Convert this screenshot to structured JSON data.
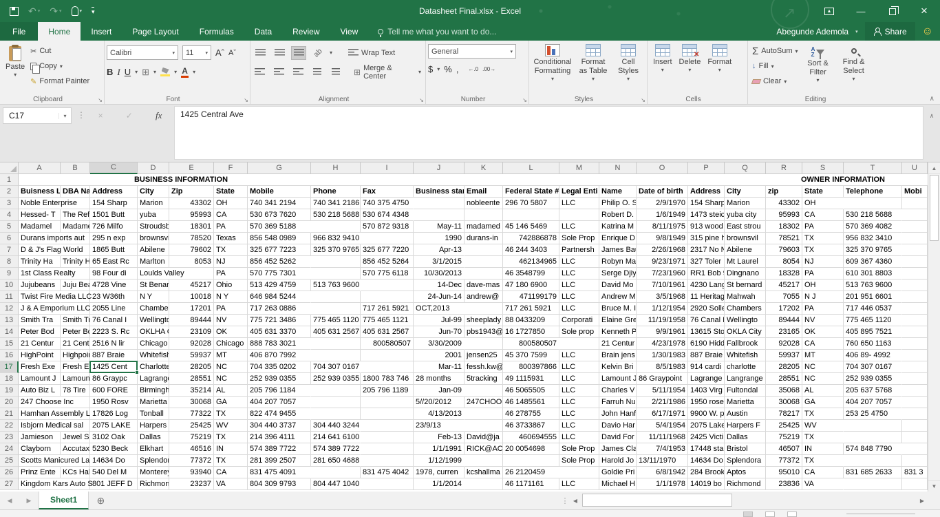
{
  "titlebar": {
    "title": "Datasheet Final.xlsx - Excel"
  },
  "account": {
    "user_name": "Abegunde Ademola",
    "share_label": "Share"
  },
  "tabs": {
    "file": "File",
    "items": [
      "Home",
      "Insert",
      "Page Layout",
      "Formulas",
      "Data",
      "Review",
      "View"
    ],
    "active": "Home",
    "tell_me": "Tell me what you want to do..."
  },
  "ribbon": {
    "clipboard": {
      "label": "Clipboard",
      "paste": "Paste",
      "cut": "Cut",
      "copy": "Copy",
      "format_painter": "Format Painter"
    },
    "font": {
      "label": "Font",
      "font_name": "Calibri",
      "font_size": "11",
      "bold": "B",
      "italic": "I",
      "underline": "U"
    },
    "alignment": {
      "label": "Alignment",
      "wrap_text": "Wrap Text",
      "merge_center": "Merge & Center"
    },
    "number": {
      "label": "Number",
      "format": "General",
      "currency": "$",
      "percent": "%",
      "comma": ",",
      "inc_decimal": "←.0",
      "dec_decimal": ".00→"
    },
    "styles": {
      "label": "Styles",
      "conditional": "Conditional Formatting",
      "format_table": "Format as Table",
      "cell_styles": "Cell Styles"
    },
    "cells": {
      "label": "Cells",
      "insert": "Insert",
      "delete": "Delete",
      "format": "Format"
    },
    "editing": {
      "label": "Editing",
      "autosum": "AutoSum",
      "fill": "Fill",
      "clear": "Clear",
      "sort": "Sort & Filter",
      "find": "Find & Select"
    }
  },
  "formula_bar": {
    "name_box": "C17",
    "fx_label": "fx",
    "value": "1425 Central Ave"
  },
  "grid": {
    "section_headers": {
      "business": "BUSINESS INFORMATION",
      "owner": "OWNER INFORMATION"
    },
    "columns": [
      [
        "A",
        61
      ],
      [
        "B",
        43
      ],
      [
        "C",
        69
      ],
      [
        "D",
        46
      ],
      [
        "E",
        65
      ],
      [
        "F",
        49
      ],
      [
        "G",
        92
      ],
      [
        "H",
        72
      ],
      [
        "I",
        77
      ],
      [
        "J",
        74
      ],
      [
        "K",
        56
      ],
      [
        "L",
        82
      ],
      [
        "M",
        58
      ],
      [
        "N",
        54
      ],
      [
        "O",
        75
      ],
      [
        "P",
        53
      ],
      [
        "Q",
        60
      ],
      [
        "R",
        53
      ],
      [
        "S",
        60
      ],
      [
        "T",
        85
      ],
      [
        "U",
        37
      ]
    ],
    "selected": {
      "cell": "C17",
      "column": "C",
      "row": 17
    },
    "rows": [
      {
        "n": 2,
        "bold": true,
        "cells": [
          "Buisness L",
          "DBA Nam",
          "Address",
          "City",
          "Zip",
          "State",
          "Mobile",
          "Phone",
          "Fax",
          "Business star",
          "Email",
          "Federal State #",
          "Legal Enti",
          "Name",
          "Date of birth",
          "Address",
          "City",
          "zip",
          "State",
          "Telephone",
          "Mobi"
        ]
      },
      {
        "n": 3,
        "cells": [
          "Noble Enterprise",
          "",
          "154 Sharp",
          "Marion",
          "43302",
          "OH",
          "740 341 2194",
          "740 341 2186",
          "740 375 4750",
          "",
          "nobleente",
          "296 70 5807",
          "LLC",
          "Philip O. S",
          "2/9/1970",
          "154 Sharp",
          "Marion",
          "43302",
          "OH",
          "",
          ""
        ]
      },
      {
        "n": 4,
        "cells": [
          "Hessed- T",
          "The Refug",
          "1501 Butt",
          "yuba",
          "95993",
          "CA",
          "530 673 7620",
          "530 218 5688",
          "530 674 4348",
          "",
          "",
          "",
          "",
          "Robert D.",
          "1/6/1949",
          "1473 steic",
          "yuba city",
          "95993",
          "CA",
          "530 218 5688",
          ""
        ]
      },
      {
        "n": 5,
        "cells": [
          "Madamel",
          "Madamel",
          "726 Milfo",
          "Stroudsbu",
          "18301",
          "PA",
          "570 369 5188",
          "",
          "570 872 9318",
          "May-11",
          "madamed",
          "45 146 5469",
          "LLC",
          "Katrina M",
          "8/11/1975",
          "913 wood",
          "East strou",
          "18302",
          "PA",
          "570 369 4082",
          ""
        ]
      },
      {
        "n": 6,
        "cells": [
          "Durans imports aut",
          "",
          "295 n exp",
          "brownsvil",
          "78520",
          "Texas",
          "856 548 0989",
          "966 832 9410",
          "",
          "1990",
          "durans-in",
          "742886878",
          "Sole Prop",
          "Enrique D",
          "9/8/1949",
          "315 pine h",
          "brownsvil",
          "78521",
          "TX",
          "956 832 3410",
          ""
        ]
      },
      {
        "n": 7,
        "cells": [
          "D & J's Flag World",
          "",
          "1865 Butt",
          "Abilene",
          "79602",
          "TX",
          "325 677 7223",
          "325 370 9765",
          "325 677 7220",
          "Apr-13",
          "",
          "46 244 3403",
          "Partnersh",
          "James Bau",
          "2/26/1968",
          "2317 No N",
          "Abilene",
          "79603",
          "TX",
          "325 370 9765",
          ""
        ]
      },
      {
        "n": 8,
        "cells": [
          "Trinity Ha",
          "Trinity Ha",
          "65 East Rc",
          "Marlton",
          "8053",
          "NJ",
          "856 452 5262",
          "",
          "856 452 5264",
          "3/1/2015",
          "",
          "462134965",
          "LLC",
          "Robyn Ma",
          "9/23/1971",
          "327 Toler",
          "Mt Laurel",
          "8054",
          "NJ",
          "609 367 4360",
          ""
        ]
      },
      {
        "n": 9,
        "cells": [
          "1st Class Realty",
          "",
          "98 Four di",
          "Loulds Valley",
          "",
          "PA",
          "570 775 7301",
          "",
          "570 775 6118",
          "10/30/2013",
          "",
          "46  3548799",
          "LLC",
          "Serge Djiy",
          "7/23/1960",
          "RR1 Bob 9",
          "Dingnano",
          "18328",
          "PA",
          "610 301 8803",
          ""
        ]
      },
      {
        "n": 10,
        "cells": [
          "Jujubeans",
          "Juju Bean",
          "4728 Vine",
          "St Benard",
          "45217",
          "Ohio",
          "513 429 4759",
          "513 763 9600",
          "",
          "14-Dec",
          "dave-mas",
          "47 180 6900",
          "LLC",
          "David Mo",
          "7/10/1961",
          "4230 Lang",
          "St bernard",
          "45217",
          "OH",
          "513 763 9600",
          ""
        ]
      },
      {
        "n": 11,
        "cells": [
          "Twist Fire Media LLC",
          "",
          "23 W36th",
          "N Y",
          "10018",
          "N Y",
          "646 984 5244",
          "",
          "",
          "24-Jun-14",
          "andrew@",
          "471199179",
          "LLC",
          "Andrew M",
          "3/5/1968",
          "11 Heritag",
          "Mahwah",
          "7055",
          "N J",
          "201 951 6601",
          ""
        ]
      },
      {
        "n": 12,
        "cells": [
          "J & A Emporium LLC",
          "",
          "2055  Line",
          "Chambers",
          "17201",
          "PA",
          "717 263 0886",
          "",
          "717 261 5921",
          "OCT,2013",
          "",
          "717 261 5921",
          "LLC",
          "Bruce M. I",
          "1/12/1954",
          "2920 Solle",
          "Chambers",
          "17202",
          "PA",
          "717 446 0537",
          ""
        ]
      },
      {
        "n": 13,
        "cells": [
          "Smith Tra",
          "Smith Tra",
          "76 Canal I",
          "Wellingto",
          "89444",
          "NV",
          "775 721 3486",
          "775 465 1120",
          "775 465 1121",
          "Jul-99",
          "sheeplady",
          "88 0433209",
          "Corporati",
          "Elaine Gre",
          "11/19/1958",
          "76 Canal I",
          "Wellingto",
          "89444",
          "NV",
          "775 465 1120",
          ""
        ]
      },
      {
        "n": 14,
        "cells": [
          "Peter Bod",
          "Peter Bod",
          "2223 S. Rc",
          "OKLHA Cit",
          "23109",
          "OK",
          "405 631 3370",
          "405 631 2567",
          "405 631 2567",
          "Jun-70",
          "pbs1943@",
          "16 1727850",
          "Sole prop",
          "Kenneth P",
          "9/9/1961",
          "13615 Sto",
          "OKLA City",
          "23165",
          "OK",
          "405 895 7521",
          ""
        ]
      },
      {
        "n": 15,
        "cells": [
          "21 Centur",
          "21 Centur",
          "2516 N lir",
          "Chicago Il",
          "92028",
          "Chicago",
          "888 783 3021",
          "",
          "800580507",
          "3/30/2009",
          "",
          "800580507",
          "",
          "21 Centur",
          "4/23/1978",
          "6190 Hidd",
          "Fallbrook",
          "92028",
          "CA",
          "760 650 1163",
          ""
        ]
      },
      {
        "n": 16,
        "cells": [
          "HighPoint",
          "Highpoint",
          "887 Braie",
          "Whitefish",
          "59937",
          "MT",
          "406 870 7992",
          "",
          "",
          "2001",
          "jensen25",
          "45 370 7599",
          "LLC",
          "Brain jens",
          "1/30/1983",
          "887 Braie",
          "Whitefish",
          "59937",
          "MT",
          "406 89- 4992",
          ""
        ]
      },
      {
        "n": 17,
        "cells": [
          "Fresh Exe",
          "Fresh Exe",
          "1425 Cent",
          "Charlotte",
          "28205",
          "NC",
          "704 335 0202",
          "704 307 0167",
          "",
          "Mar-11",
          "fessh.kw@",
          "800397866",
          "LLC",
          "Kelvin Bri",
          "8/5/1983",
          "914 cardi",
          "charlotte",
          "28205",
          "NC",
          "704 307 0167",
          ""
        ]
      },
      {
        "n": 18,
        "cells": [
          "Lamount J",
          "Lamount J",
          "86 Graypc",
          "Lagrange",
          "28551",
          "NC",
          "252 939 0355",
          "252 939 0355",
          "1800 783 746",
          "28 months",
          "5tracking",
          "49 1115931",
          "LLC",
          "Lamount J",
          "86 Graypoint",
          "Lagrange",
          "Langrange",
          "28551",
          "NC",
          "252 939 0355",
          ""
        ]
      },
      {
        "n": 19,
        "cells": [
          "Auto Biz L",
          "78 Tire",
          "600 FORE",
          "Birmingha",
          "35214",
          "AL",
          "205 796 1184",
          "",
          "205 796 1189",
          "Jan-09",
          "",
          "46 5065505",
          "LLC",
          "Charles V",
          "5/11/1954",
          "1403 Virg",
          "Fultondal",
          "35068",
          "AL",
          "205 637 5768",
          ""
        ]
      },
      {
        "n": 20,
        "cells": [
          "247 Choose Inc",
          "",
          "1950 Rosv",
          "Marietta",
          "30068",
          "GA",
          "404 207 7057",
          "",
          "",
          "5//20/2012",
          "247CHOO",
          "46 1485561",
          "LLC",
          "Farruh Nu",
          "2/21/1986",
          "1950 rose",
          "Marietta",
          "30068",
          "GA",
          "404 207 7057",
          ""
        ]
      },
      {
        "n": 21,
        "cells": [
          "Hamhan Assembly L",
          "",
          "17826 Log",
          "Tonball",
          "77322",
          "TX",
          "822 474 9455",
          "",
          "",
          "4/13/2013",
          "",
          "46 278755",
          "LLC",
          "John Hanf",
          "6/17/1971",
          "9900 W. p",
          "Austin",
          "78217",
          "TX",
          "253 25 4750",
          ""
        ]
      },
      {
        "n": 22,
        "cells": [
          "Isbjorn Medical sal",
          "",
          "2075 LAKE",
          "Harpers fe",
          "25425",
          "WV",
          "304 440 3737",
          "304 440 3244",
          "",
          "23/9/13",
          "",
          "46 3733867",
          "LLC",
          "Davio Har",
          "5/4/1954",
          "2075 Lake",
          "Harpers F",
          "25425",
          "WV",
          "",
          ""
        ]
      },
      {
        "n": 23,
        "cells": [
          "Jamieson",
          "Jewel Sal",
          "3102 Oak",
          "Dallas",
          "75219",
          "TX",
          "214 396 4111",
          "214 641 6100",
          "",
          "Feb-13",
          "David@ja",
          "460694555",
          "LLC",
          "David For",
          "11/11/1968",
          "2425 Victi",
          "Dallas",
          "75219",
          "TX",
          "",
          ""
        ]
      },
      {
        "n": 24,
        "cells": [
          "Clayborn",
          "Accutax C",
          "5230 Beck",
          "Elkhart",
          "46516",
          "IN",
          "574 389 7722",
          "574 389 7722",
          "",
          "1/1/1991",
          "RICK@AC",
          "20 0054698",
          "Sole Prop",
          "James Cla",
          "7/4/1953",
          "17448 sta",
          "Bristol",
          "46507",
          "IN",
          "574 848 7790",
          ""
        ]
      },
      {
        "n": 25,
        "cells": [
          "Scotts Manicured La",
          "",
          "14634 Do",
          "Splendora",
          "77372",
          "TX",
          "281 399 2507",
          "281 650 4688",
          "",
          "1/12/1999",
          "",
          "",
          "Sole Prop",
          "Harold Jo",
          "13/11/1970",
          "14634 Do",
          "Splendora",
          "77372",
          "TX",
          "",
          ""
        ]
      },
      {
        "n": 26,
        "cells": [
          "Prinz Ente",
          "KCs Halm",
          "540 Del M",
          "Monterey",
          "93940",
          "CA",
          "831 475 4091",
          "",
          "831 475 4042",
          "1978, curren",
          "kcshallma",
          "26 2120459",
          "",
          "Goldie Pri",
          "6/8/1942",
          "284 Brook",
          "Aptos",
          "95010",
          "CA",
          "831 685 2633",
          "831 3"
        ]
      },
      {
        "n": 27,
        "cells": [
          "Kingdom Kars Auto S",
          "",
          "801 JEFF D",
          "Richmond",
          "23237",
          "VA",
          "804 309 9793",
          "804 447 1040",
          "",
          "1/1/2014",
          "",
          "46 1171161",
          "LLC",
          "Michael H",
          "1/1/1978",
          "14019 bo",
          "Richmond",
          "23836",
          "VA",
          "",
          ""
        ]
      }
    ]
  },
  "sheet_bar": {
    "active_tab": "Sheet1"
  },
  "colors": {
    "accent_green": "#217346",
    "grid_line": "#d9d9d9",
    "ribbon_bg": "#f1f1f1"
  },
  "icons": {
    "scissors": "✂",
    "pencil_brush": "✎",
    "sigma": "Σ",
    "undo": "↶",
    "redo": "↷",
    "caret_down": "▾",
    "up_arrow": "▲",
    "down_arrow": "▼",
    "left_arrow": "◄",
    "right_arrow": "►",
    "plus_circle": "⊕",
    "dots": "⋮",
    "collapse_up": "∧",
    "close_x": "×",
    "smiley": "☺",
    "borders_grid": "⊞",
    "launcher": "↘",
    "fill_down": "↓",
    "minimize": "—",
    "delete_x": "✕"
  }
}
